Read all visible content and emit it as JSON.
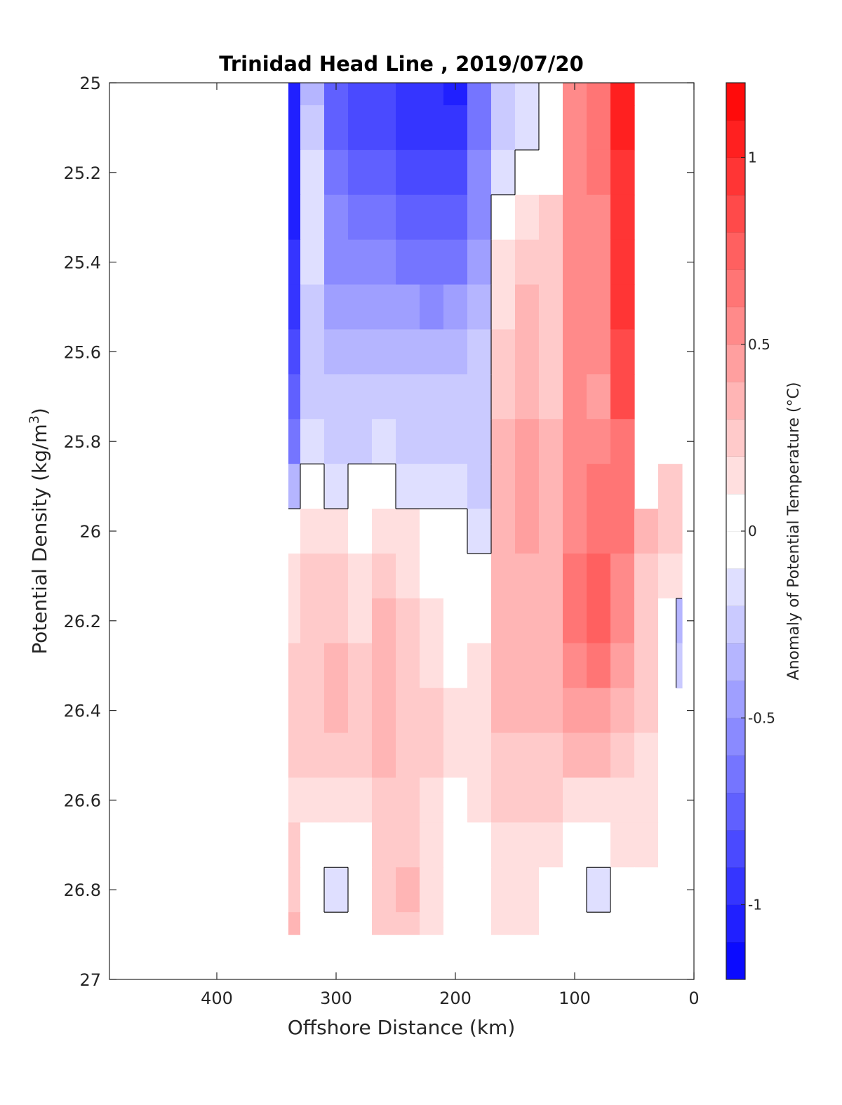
{
  "chart_data": {
    "type": "heatmap",
    "title": "Trinidad Head Line , 2019/07/20",
    "xlabel": "Offshore Distance (km)",
    "ylabel_main": "Potential Density (kg/m",
    "ylabel_sup": "3",
    "ylabel_close": ")",
    "xlim": [
      490,
      0
    ],
    "ylim": [
      25,
      27
    ],
    "y_reversed": true,
    "x_ticks": [
      400,
      300,
      200,
      100,
      0
    ],
    "y_ticks": [
      "25",
      "25.2",
      "25.4",
      "25.6",
      "25.8",
      "26",
      "26.2",
      "26.4",
      "26.6",
      "26.8",
      "27"
    ],
    "colorbar": {
      "label": "Anomaly of Potential Temperature (°C)",
      "range": [
        -1.2,
        1.2
      ],
      "step": 0.1,
      "ticks": [
        "-1",
        "-0.5",
        "0",
        "0.5",
        "1"
      ],
      "tick_values": [
        -1,
        -0.5,
        0,
        0.5,
        1
      ],
      "negative_color": "#0000ff",
      "positive_color": "#ff0000",
      "neutral_color": "#ffffff"
    },
    "stations_km": [
      340,
      320,
      300,
      280,
      260,
      240,
      220,
      200,
      180,
      160,
      140,
      120,
      100,
      80,
      60,
      40,
      20,
      10
    ],
    "density_levels": [
      25.0,
      25.1,
      25.2,
      25.3,
      25.4,
      25.5,
      25.6,
      25.7,
      25.8,
      25.9,
      26.0,
      26.1,
      26.2,
      26.3,
      26.4,
      26.5,
      26.6,
      26.7,
      26.8,
      26.9
    ],
    "anomaly_grid": [
      [
        -1.0,
        -0.3,
        -0.7,
        -0.8,
        -0.8,
        -0.9,
        -0.9,
        -1.0,
        -0.6,
        -0.2,
        -0.1,
        0.0,
        0.5,
        0.6,
        1.0,
        null,
        null,
        null
      ],
      [
        -1.0,
        -0.2,
        -0.7,
        -0.8,
        -0.8,
        -0.9,
        -0.9,
        -0.9,
        -0.6,
        -0.2,
        -0.1,
        0.0,
        0.5,
        0.6,
        1.0,
        null,
        null,
        null
      ],
      [
        -1.0,
        -0.1,
        -0.6,
        -0.7,
        -0.7,
        -0.8,
        -0.8,
        -0.8,
        -0.5,
        -0.1,
        0.0,
        0.0,
        0.5,
        0.6,
        0.9,
        null,
        null,
        null
      ],
      [
        -1.0,
        -0.1,
        -0.5,
        -0.6,
        -0.6,
        -0.7,
        -0.7,
        -0.7,
        -0.5,
        0.0,
        0.1,
        0.2,
        0.5,
        0.5,
        0.9,
        null,
        null,
        null
      ],
      [
        -0.9,
        -0.1,
        -0.5,
        -0.5,
        -0.5,
        -0.6,
        -0.6,
        -0.6,
        -0.4,
        0.1,
        0.2,
        0.2,
        0.5,
        0.5,
        0.9,
        null,
        null,
        null
      ],
      [
        -0.9,
        -0.2,
        -0.4,
        -0.4,
        -0.4,
        -0.4,
        -0.5,
        -0.4,
        -0.3,
        0.1,
        0.3,
        0.2,
        0.5,
        0.5,
        0.9,
        null,
        null,
        null
      ],
      [
        -0.8,
        -0.2,
        -0.3,
        -0.3,
        -0.3,
        -0.3,
        -0.3,
        -0.3,
        -0.2,
        0.2,
        0.3,
        0.2,
        0.5,
        0.5,
        0.8,
        null,
        null,
        null
      ],
      [
        -0.7,
        -0.2,
        -0.2,
        -0.2,
        -0.2,
        -0.2,
        -0.2,
        -0.2,
        -0.2,
        0.2,
        0.3,
        0.2,
        0.5,
        0.4,
        0.8,
        null,
        null,
        null
      ],
      [
        -0.6,
        -0.1,
        -0.2,
        -0.2,
        -0.1,
        -0.2,
        -0.2,
        -0.2,
        -0.2,
        0.3,
        0.4,
        0.3,
        0.5,
        0.5,
        0.6,
        null,
        null,
        null
      ],
      [
        -0.3,
        0.0,
        -0.1,
        0.0,
        0.0,
        -0.1,
        -0.1,
        -0.1,
        -0.2,
        0.3,
        0.4,
        0.3,
        0.5,
        0.6,
        0.6,
        null,
        0.2,
        0.2
      ],
      [
        0.0,
        0.1,
        0.1,
        0.0,
        0.1,
        0.1,
        0.0,
        0.0,
        -0.1,
        0.3,
        0.4,
        0.3,
        0.5,
        0.6,
        0.6,
        0.3,
        0.2,
        0.2
      ],
      [
        0.1,
        0.2,
        0.2,
        0.1,
        0.2,
        0.1,
        0.0,
        0.0,
        0.0,
        0.3,
        0.3,
        0.3,
        0.6,
        0.7,
        0.5,
        0.2,
        0.1,
        0.1
      ],
      [
        0.1,
        0.2,
        0.2,
        0.1,
        0.3,
        0.2,
        0.1,
        0.0,
        0.0,
        0.3,
        0.3,
        0.3,
        0.6,
        0.7,
        0.5,
        0.2,
        0.0,
        -0.3
      ],
      [
        0.2,
        0.2,
        0.3,
        0.2,
        0.3,
        0.2,
        0.1,
        0.0,
        0.1,
        0.3,
        0.3,
        0.3,
        0.5,
        0.6,
        0.4,
        0.2,
        0.0,
        -0.2
      ],
      [
        0.2,
        0.2,
        0.3,
        0.2,
        0.3,
        0.2,
        0.2,
        0.1,
        0.1,
        0.3,
        0.3,
        0.3,
        0.4,
        0.4,
        0.3,
        0.2,
        0.0,
        null
      ],
      [
        0.2,
        0.2,
        0.2,
        0.2,
        0.3,
        0.2,
        0.2,
        0.1,
        0.1,
        0.2,
        0.2,
        0.2,
        0.3,
        0.3,
        0.2,
        0.1,
        0.0,
        null
      ],
      [
        0.1,
        0.1,
        0.1,
        0.1,
        0.2,
        0.2,
        0.1,
        0.0,
        0.1,
        0.2,
        0.2,
        0.2,
        0.1,
        0.1,
        0.1,
        0.1,
        0.0,
        null
      ],
      [
        0.2,
        0.0,
        0.0,
        0.0,
        0.2,
        0.2,
        0.1,
        0.0,
        0.0,
        0.1,
        0.1,
        0.1,
        0.0,
        0.0,
        0.1,
        0.1,
        0.0,
        null
      ],
      [
        0.2,
        0.0,
        -0.1,
        0.0,
        0.2,
        0.3,
        0.1,
        0.0,
        0.0,
        0.1,
        0.1,
        0.0,
        0.0,
        -0.1,
        0.0,
        0.0,
        0.0,
        null
      ],
      [
        0.3,
        0.0,
        0.0,
        0.0,
        0.2,
        0.2,
        0.1,
        0.0,
        0.0,
        0.1,
        0.1,
        0.0,
        0.0,
        0.0,
        0.0,
        0.0,
        null,
        null
      ]
    ]
  }
}
